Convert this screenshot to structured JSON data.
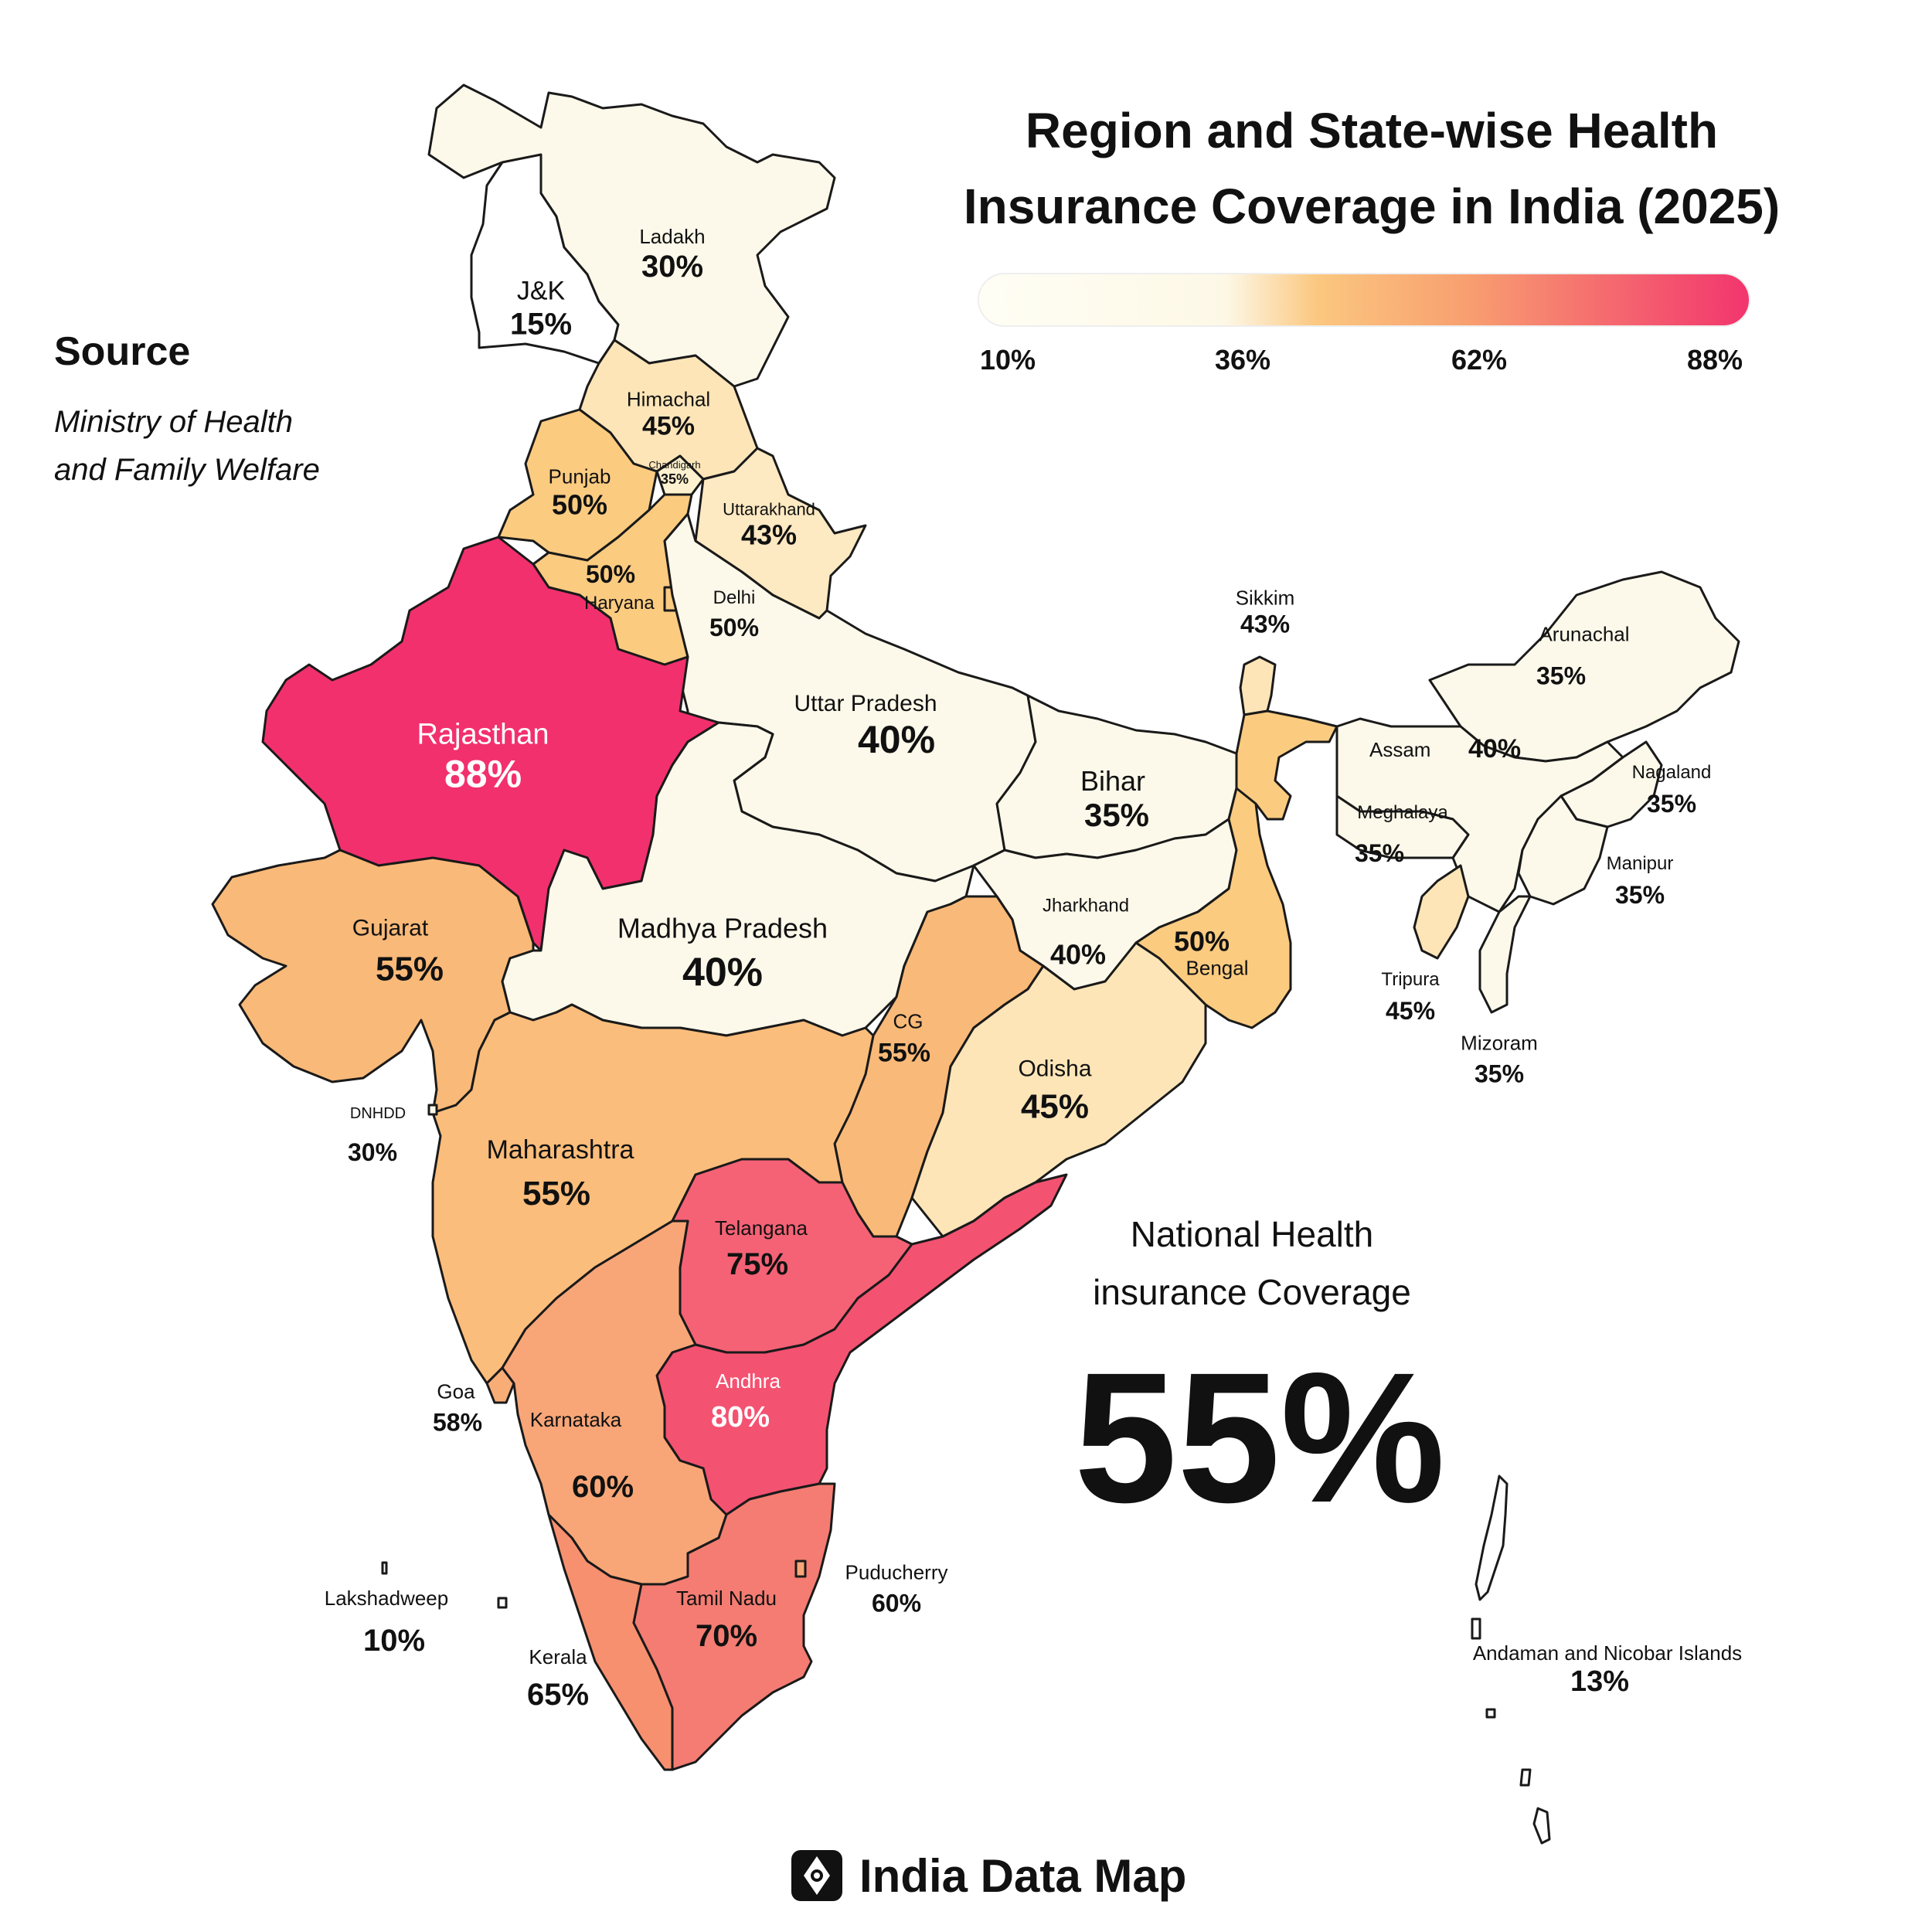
{
  "title_line1": "Region and State-wise Health",
  "title_line2": "Insurance Coverage in India (2025)",
  "source": {
    "heading": "Source",
    "line1": "Ministry of Health",
    "line2": "and Family Welfare"
  },
  "legend": {
    "ticks": [
      "10%",
      "36%",
      "62%",
      "88%"
    ],
    "colors": [
      "#fffef5",
      "#fbc77f",
      "#f8a070",
      "#f2356e"
    ]
  },
  "national": {
    "line1": "National Health",
    "line2": "insurance Coverage",
    "value": "55%"
  },
  "brand": {
    "name": "India Data Map",
    "icon": "map-pin-diamond-icon"
  },
  "regions": [
    {
      "id": "ladakh",
      "name": "Ladakh",
      "value": "30%",
      "fill": "#fdf9ea"
    },
    {
      "id": "jk",
      "name": "J&K",
      "value": "15%",
      "fill": "#ffffff"
    },
    {
      "id": "himachal",
      "name": "Himachal",
      "value": "45%",
      "fill": "#fde5b8"
    },
    {
      "id": "punjab",
      "name": "Punjab",
      "value": "50%",
      "fill": "#fbcb80"
    },
    {
      "id": "chandigarh",
      "name": "Chandigarh",
      "value": "35%",
      "fill": "#fdf1cf"
    },
    {
      "id": "uttarakhand",
      "name": "Uttarakhand",
      "value": "43%",
      "fill": "#fde9c2"
    },
    {
      "id": "haryana",
      "name": "Haryana",
      "value": "50%",
      "fill": "#fbcb80"
    },
    {
      "id": "delhi",
      "name": "Delhi",
      "value": "50%",
      "fill": "#fbcb80"
    },
    {
      "id": "rajasthan",
      "name": "Rajasthan",
      "value": "88%",
      "fill": "#f2306d"
    },
    {
      "id": "up",
      "name": "Uttar Pradesh",
      "value": "40%",
      "fill": "#fdf9ea"
    },
    {
      "id": "bihar",
      "name": "Bihar",
      "value": "35%",
      "fill": "#fdf9ea"
    },
    {
      "id": "sikkim",
      "name": "Sikkim",
      "value": "43%",
      "fill": "#fde5b8"
    },
    {
      "id": "arunachal",
      "name": "Arunachal",
      "value": "35%",
      "fill": "#fdf9ea"
    },
    {
      "id": "assam",
      "name": "Assam",
      "value": "40%",
      "fill": "#fdf9ea"
    },
    {
      "id": "nagaland",
      "name": "Nagaland",
      "value": "35%",
      "fill": "#fdf9ea"
    },
    {
      "id": "meghalaya",
      "name": "Meghalaya",
      "value": "35%",
      "fill": "#fdf9ea"
    },
    {
      "id": "manipur",
      "name": "Manipur",
      "value": "35%",
      "fill": "#fdf9ea"
    },
    {
      "id": "tripura",
      "name": "Tripura",
      "value": "45%",
      "fill": "#fde5b8"
    },
    {
      "id": "mizoram",
      "name": "Mizoram",
      "value": "35%",
      "fill": "#fdf9ea"
    },
    {
      "id": "gujarat",
      "name": "Gujarat",
      "value": "55%",
      "fill": "#f9b978"
    },
    {
      "id": "mp",
      "name": "Madhya Pradesh",
      "value": "40%",
      "fill": "#fdf9ea"
    },
    {
      "id": "jharkhand",
      "name": "Jharkhand",
      "value": "40%",
      "fill": "#fdf9ea"
    },
    {
      "id": "bengal",
      "name": "Bengal",
      "value": "50%",
      "fill": "#fbcb80"
    },
    {
      "id": "cg",
      "name": "CG",
      "value": "55%",
      "fill": "#f9b978"
    },
    {
      "id": "odisha",
      "name": "Odisha",
      "value": "45%",
      "fill": "#fde5b8"
    },
    {
      "id": "dnhdd",
      "name": "DNHDD",
      "value": "30%",
      "fill": "#fdf9ea"
    },
    {
      "id": "maharashtra",
      "name": "Maharashtra",
      "value": "55%",
      "fill": "#fbbd7b"
    },
    {
      "id": "telangana",
      "name": "Telangana",
      "value": "75%",
      "fill": "#f56275"
    },
    {
      "id": "andhra",
      "name": "Andhra",
      "value": "80%",
      "fill": "#f45271"
    },
    {
      "id": "goa",
      "name": "Goa",
      "value": "58%",
      "fill": "#f9ad76"
    },
    {
      "id": "karnataka",
      "name": "Karnataka",
      "value": "60%",
      "fill": "#f8a678"
    },
    {
      "id": "puducherry",
      "name": "Puducherry",
      "value": "60%",
      "fill": "#f8a678"
    },
    {
      "id": "lakshadweep",
      "name": "Lakshadweep",
      "value": "10%",
      "fill": "#ffffff"
    },
    {
      "id": "kerala",
      "name": "Kerala",
      "value": "65%",
      "fill": "#f7906f"
    },
    {
      "id": "tamilnadu",
      "name": "Tamil Nadu",
      "value": "70%",
      "fill": "#f47c72"
    },
    {
      "id": "andaman",
      "name": "Andaman and Nicobar Islands",
      "value": "13%",
      "fill": "#ffffff"
    }
  ]
}
